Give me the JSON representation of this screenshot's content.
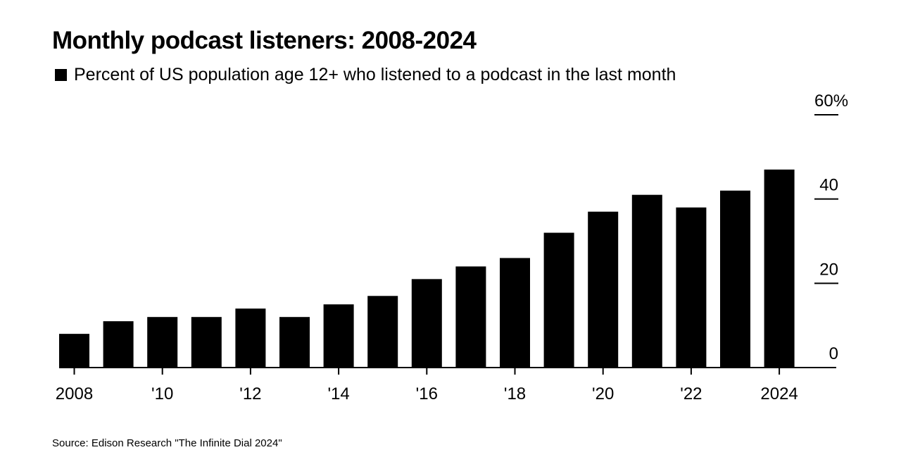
{
  "title": "Monthly podcast listeners: 2008-2024",
  "legend_label": "Percent of US population age 12+ who listened to a podcast in the last month",
  "source": "Source: Edison Research \"The Infinite Dial 2024\"",
  "colors": {
    "bar": "#000000",
    "background": "#ffffff"
  },
  "chart_data": {
    "type": "bar",
    "title": "Monthly podcast listeners: 2008-2024",
    "series": [
      {
        "name": "Percent of US population age 12+ who listened to a podcast in the last month",
        "values": [
          8,
          11,
          12,
          12,
          14,
          12,
          15,
          17,
          21,
          24,
          26,
          32,
          37,
          41,
          38,
          42,
          47
        ]
      }
    ],
    "categories": [
      "2008",
      "2009",
      "2010",
      "2011",
      "2012",
      "2013",
      "2014",
      "2015",
      "2016",
      "2017",
      "2018",
      "2019",
      "2020",
      "2021",
      "2022",
      "2023",
      "2024"
    ],
    "x_tick_labels": [
      {
        "category": "2008",
        "label": "2008"
      },
      {
        "category": "2010",
        "label": "'10"
      },
      {
        "category": "2012",
        "label": "'12"
      },
      {
        "category": "2014",
        "label": "'14"
      },
      {
        "category": "2016",
        "label": "'16"
      },
      {
        "category": "2018",
        "label": "'18"
      },
      {
        "category": "2020",
        "label": "'20"
      },
      {
        "category": "2022",
        "label": "'22"
      },
      {
        "category": "2024",
        "label": "2024"
      }
    ],
    "y_ticks": [
      {
        "value": 0,
        "label": "0"
      },
      {
        "value": 20,
        "label": "20"
      },
      {
        "value": 40,
        "label": "40"
      },
      {
        "value": 60,
        "label": "60%"
      }
    ],
    "ylim": [
      0,
      60
    ],
    "y_axis_position": "right",
    "grid": false,
    "legend_placement": "top-left"
  }
}
